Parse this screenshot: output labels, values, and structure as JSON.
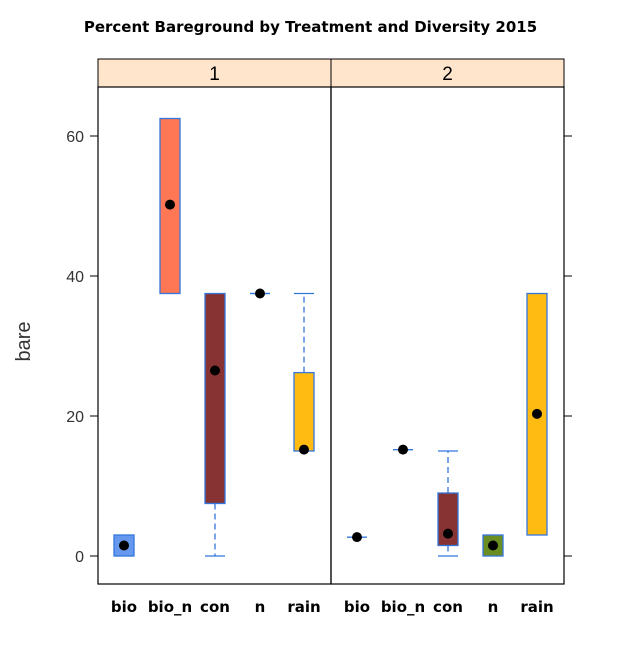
{
  "chart_data": {
    "type": "boxplot",
    "title": "Percent Bareground by Treatment and Diversity 2015",
    "ylabel": "bare",
    "ylim": [
      -4,
      67
    ],
    "yticks": [
      0,
      20,
      40,
      60
    ],
    "categories": [
      "bio",
      "bio_n",
      "con",
      "n",
      "rain"
    ],
    "panels": [
      {
        "label": "1",
        "boxes": [
          {
            "category": "bio",
            "q1": 0,
            "median": 1.5,
            "q3": 3,
            "whisker_low": 0,
            "whisker_high": 3,
            "color": "#6699ee"
          },
          {
            "category": "bio_n",
            "q1": 37.5,
            "median": 50.2,
            "q3": 62.5,
            "whisker_low": 37.5,
            "whisker_high": 62.5,
            "color": "#ff7755"
          },
          {
            "category": "con",
            "q1": 7.5,
            "median": 26.5,
            "q3": 37.5,
            "whisker_low": 0,
            "whisker_high": 37.5,
            "color": "#883333"
          },
          {
            "category": "n",
            "q1": 37.5,
            "median": 37.5,
            "q3": 37.5,
            "whisker_low": 37.5,
            "whisker_high": 37.5,
            "color": "#6b8e23"
          },
          {
            "category": "rain",
            "q1": 15,
            "median": 15.2,
            "q3": 26.2,
            "whisker_low": 15,
            "whisker_high": 37.5,
            "color": "#ffbb11"
          }
        ]
      },
      {
        "label": "2",
        "boxes": [
          {
            "category": "bio",
            "q1": 2.7,
            "median": 2.7,
            "q3": 2.7,
            "whisker_low": 2.7,
            "whisker_high": 2.7,
            "color": "#6699ee"
          },
          {
            "category": "bio_n",
            "q1": 15.2,
            "median": 15.2,
            "q3": 15.2,
            "whisker_low": 15.2,
            "whisker_high": 15.2,
            "color": "#ff7755"
          },
          {
            "category": "con",
            "q1": 1.5,
            "median": 3.2,
            "q3": 9,
            "whisker_low": 0,
            "whisker_high": 15,
            "color": "#883333"
          },
          {
            "category": "n",
            "q1": 0,
            "median": 1.5,
            "q3": 3,
            "whisker_low": 0,
            "whisker_high": 3,
            "color": "#6b8e23"
          },
          {
            "category": "rain",
            "q1": 3,
            "median": 20.3,
            "q3": 37.5,
            "whisker_low": 3,
            "whisker_high": 37.5,
            "color": "#ffbb11"
          }
        ]
      }
    ],
    "strip_color": "#ffe5cc",
    "box_border_color": "#3377dd",
    "whisker_color": "#3377dd",
    "median_dot_color": "#000000",
    "grid": false,
    "legend": "none"
  }
}
